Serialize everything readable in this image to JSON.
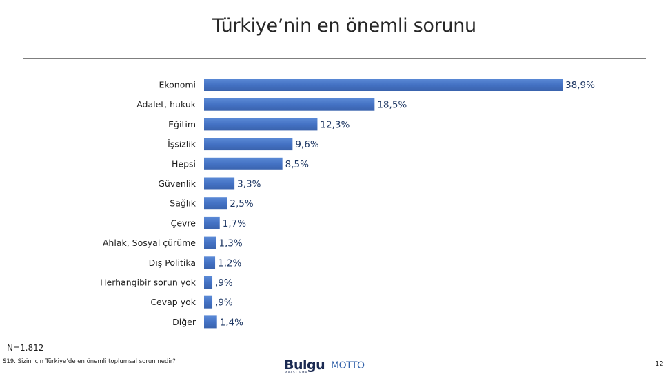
{
  "title": "Türkiye’nin en önemli sorunu",
  "chart_data": {
    "type": "bar",
    "orientation": "horizontal",
    "categories": [
      "Ekonomi",
      "Adalet, hukuk",
      "Eğitim",
      "İşsizlik",
      "Hepsi",
      "Güvenlik",
      "Sağlık",
      "Çevre",
      "Ahlak, Sosyal çürüme",
      "Dış Politika",
      "Herhangibir sorun yok",
      "Cevap yok",
      "Diğer"
    ],
    "values": [
      38.9,
      18.5,
      12.3,
      9.6,
      8.5,
      3.3,
      2.5,
      1.7,
      1.3,
      1.2,
      0.9,
      0.9,
      1.4
    ],
    "value_labels": [
      "38,9%",
      "18,5%",
      "12,3%",
      "9,6%",
      "8,5%",
      "3,3%",
      "2,5%",
      "1,7%",
      "1,3%",
      "1,2%",
      ",9%",
      ",9%",
      "1,4%"
    ],
    "bar_color": "#4472c4",
    "label_color": "#1f3864",
    "grid": false,
    "legend": "none"
  },
  "footer": {
    "sample_size": "N=1.812",
    "question": "S19. Sizin için Türkiye’de en önemli toplumsal sorun nedir?",
    "logo_primary": "Bulgu",
    "logo_primary_sub": "ARAŞTIRMA",
    "logo_secondary": "MOTTO",
    "page_number": "12"
  }
}
